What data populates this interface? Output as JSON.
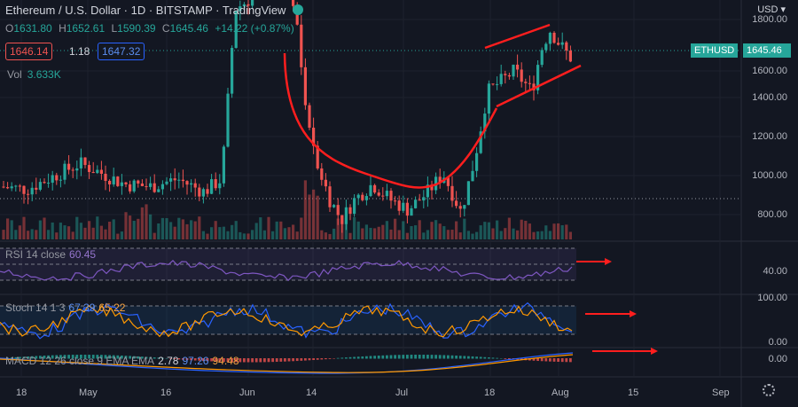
{
  "header": {
    "title": "Ethereum / U.S. Dollar · 1D · BITSTAMP · TradingView",
    "ohlc": [
      {
        "k": "O",
        "v": "1631.80"
      },
      {
        "k": "H",
        "v": "1652.61"
      },
      {
        "k": "L",
        "v": "1590.39"
      },
      {
        "k": "C",
        "v": "1645.46"
      }
    ],
    "change": "+14.22 (+0.87%)",
    "sell": "1646.14",
    "spread": "1.18",
    "buy": "1647.32",
    "vol_label": "Vol",
    "vol_value": "3.633K"
  },
  "axis": {
    "currency": "USD",
    "symbol_tag": "ETHUSD",
    "price_tag": "1645.46",
    "price_ticks": [
      "1800.00",
      "1600.00",
      "1400.00",
      "1200.00",
      "1000.00",
      "800.00"
    ],
    "rsi_ticks": [
      "40.00"
    ],
    "stoch_ticks": [
      "100.00",
      "0.00"
    ],
    "macd_ticks": [
      "0.00"
    ],
    "x_ticks": [
      "18",
      "May",
      "16",
      "Jun",
      "14",
      "Jul",
      "18",
      "Aug",
      "15",
      "Sep"
    ]
  },
  "indicators": {
    "rsi": {
      "label": "RSI 14 close",
      "value": "60.45"
    },
    "stoch": {
      "label": "Stoch 14 1 3",
      "k": "67.39",
      "d": "65.22"
    },
    "macd": {
      "label": "MACD 12 26 close 9 EMA EMA",
      "v1": "2.78",
      "v2": "97.26",
      "v3": "94.48"
    }
  },
  "colors": {
    "up": "#26a69a",
    "down": "#ef5350",
    "annotation": "#ff1e1e",
    "background": "#131722"
  },
  "chart_data": {
    "type": "candlestick",
    "title": "Ethereum / U.S. Dollar",
    "interval": "1D",
    "exchange": "BITSTAMP",
    "ylim": [
      640,
      1900
    ],
    "last_close": 1645.46,
    "annotations": [
      "cup-curve",
      "rising-wedge-upper",
      "rising-wedge-lower",
      "rsi-arrow",
      "stoch-arrow",
      "macd-arrow"
    ]
  }
}
